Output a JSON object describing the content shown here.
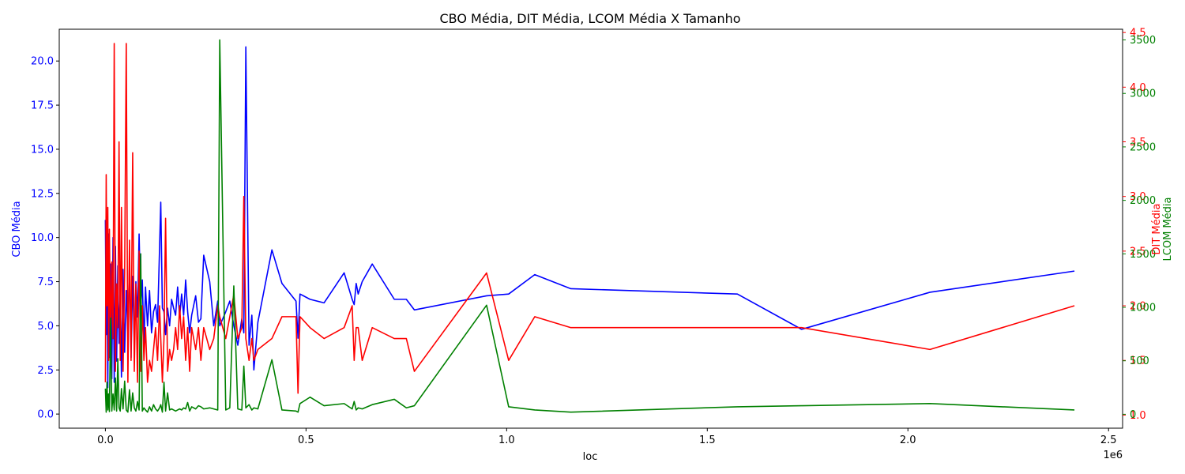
{
  "chart_data": {
    "type": "line",
    "title": "CBO Média, DIT Média, LCOM Média X Tamanho",
    "xlabel": "loc",
    "x_offset_label": "1e6",
    "x_ticks": [
      0,
      500000,
      1000000,
      1500000,
      2000000,
      2500000
    ],
    "x_tick_labels": [
      "0.0",
      "0.5",
      "1.0",
      "1.5",
      "2.0",
      "2.5"
    ],
    "xlim": [
      -115000,
      2535000
    ],
    "grid": false,
    "axes": [
      {
        "side": "left",
        "label": "CBO Média",
        "color": "#0000ff",
        "ylim": [
          -0.8,
          21.8
        ],
        "ticks": [
          0,
          2.5,
          5,
          7.5,
          10,
          12.5,
          15,
          17.5,
          20
        ],
        "tick_labels": [
          "0.0",
          "2.5",
          "5.0",
          "7.5",
          "10.0",
          "12.5",
          "15.0",
          "17.5",
          "20.0"
        ]
      },
      {
        "side": "right",
        "label": "DIT Média",
        "color": "#ff0000",
        "ylim": [
          0.88,
          4.53
        ],
        "ticks": [
          1.0,
          1.5,
          2.0,
          2.5,
          3.0,
          3.5,
          4.0,
          4.5
        ],
        "tick_labels": [
          "1.0",
          "1.5",
          "2.0",
          "2.5",
          "3.0",
          "3.5",
          "4.0",
          "4.5"
        ]
      },
      {
        "side": "right",
        "label": "LCOM Média",
        "color": "#008000",
        "ylim": [
          -130,
          3600
        ],
        "ticks": [
          0,
          500,
          1000,
          1500,
          2000,
          2500,
          3000,
          3500
        ],
        "tick_labels": [
          "0",
          "500",
          "1000",
          "1500",
          "2000",
          "2500",
          "3000",
          "3500"
        ]
      }
    ],
    "series": [
      {
        "name": "CBO Média",
        "axis": 0,
        "color": "#0000ff",
        "x": [
          0,
          2000,
          4000,
          6000,
          8000,
          10000,
          13000,
          16000,
          19000,
          22000,
          25000,
          28000,
          31000,
          34000,
          37000,
          40000,
          44000,
          48000,
          52000,
          56000,
          60000,
          64000,
          68000,
          72000,
          76000,
          80000,
          84000,
          88000,
          92000,
          96000,
          100000,
          105000,
          110000,
          115000,
          120000,
          125000,
          130000,
          135000,
          138000,
          142000,
          146000,
          150000,
          155000,
          160000,
          165000,
          170000,
          175000,
          180000,
          185000,
          190000,
          195000,
          200000,
          205000,
          210000,
          215000,
          225000,
          232000,
          238000,
          245000,
          260000,
          270000,
          280000,
          285000,
          300000,
          310000,
          320000,
          330000,
          340000,
          345000,
          350000,
          358000,
          365000,
          370000,
          380000,
          415000,
          440000,
          475000,
          480000,
          485000,
          510000,
          545000,
          595000,
          615000,
          620000,
          625000,
          630000,
          640000,
          665000,
          720000,
          750000,
          770000,
          950000,
          1005000,
          1070000,
          1160000,
          1575000,
          1735000,
          2055000,
          2415000
        ],
        "y": [
          11.0,
          4.5,
          9.0,
          1.5,
          10.2,
          3.2,
          8.5,
          2.0,
          10.0,
          1.8,
          9.5,
          3.0,
          8.4,
          4.0,
          7.2,
          2.1,
          8.2,
          3.5,
          7.0,
          4.6,
          8.5,
          3.2,
          7.8,
          4.0,
          7.5,
          5.5,
          10.2,
          6.0,
          7.6,
          3.9,
          7.2,
          5.0,
          7.0,
          4.6,
          5.8,
          6.2,
          5.2,
          9.4,
          12.0,
          6.0,
          5.8,
          4.5,
          6.0,
          5.0,
          6.5,
          6.0,
          5.6,
          7.2,
          5.5,
          6.8,
          5.6,
          7.6,
          5.8,
          4.6,
          5.6,
          6.7,
          5.2,
          5.4,
          9.0,
          7.5,
          5.0,
          6.4,
          5.0,
          5.8,
          6.4,
          5.0,
          3.9,
          5.4,
          4.6,
          20.8,
          3.9,
          5.6,
          2.5,
          5.2,
          9.3,
          7.4,
          6.4,
          4.3,
          6.8,
          6.5,
          6.3,
          8.0,
          6.5,
          6.2,
          7.4,
          6.8,
          7.5,
          8.5,
          6.5,
          6.5,
          5.9,
          6.7,
          6.8,
          7.9,
          7.1,
          6.8,
          4.8,
          6.9,
          8.1
        ]
      },
      {
        "name": "DIT Média",
        "axis": 1,
        "color": "#ff0000",
        "x": [
          0,
          2000,
          4000,
          6000,
          8000,
          10000,
          13000,
          16000,
          19000,
          22000,
          25000,
          28000,
          31000,
          34000,
          37000,
          40000,
          44000,
          48000,
          52000,
          56000,
          60000,
          64000,
          68000,
          72000,
          76000,
          80000,
          84000,
          88000,
          92000,
          96000,
          100000,
          105000,
          110000,
          115000,
          120000,
          125000,
          130000,
          135000,
          138000,
          142000,
          146000,
          150000,
          155000,
          160000,
          165000,
          170000,
          175000,
          180000,
          185000,
          190000,
          195000,
          200000,
          205000,
          210000,
          215000,
          225000,
          232000,
          238000,
          245000,
          260000,
          270000,
          280000,
          285000,
          300000,
          310000,
          320000,
          330000,
          340000,
          345000,
          350000,
          358000,
          365000,
          370000,
          380000,
          415000,
          440000,
          475000,
          480000,
          485000,
          510000,
          545000,
          595000,
          615000,
          620000,
          625000,
          630000,
          640000,
          665000,
          720000,
          750000,
          770000,
          950000,
          1005000,
          1070000,
          1160000,
          1575000,
          1735000,
          2055000,
          2415000
        ],
        "y": [
          1.3,
          3.2,
          2.0,
          2.9,
          1.5,
          2.7,
          1.6,
          2.4,
          1.7,
          4.4,
          1.4,
          2.2,
          1.8,
          3.5,
          1.5,
          2.9,
          1.4,
          2.3,
          4.4,
          1.3,
          2.6,
          1.5,
          3.4,
          1.4,
          2.2,
          1.3,
          2.5,
          1.4,
          2.0,
          1.5,
          1.8,
          1.3,
          1.5,
          1.4,
          1.6,
          1.8,
          1.5,
          2.0,
          1.7,
          1.3,
          1.7,
          2.8,
          1.4,
          1.6,
          1.5,
          1.6,
          1.8,
          1.6,
          2.0,
          1.7,
          1.9,
          1.5,
          1.8,
          1.4,
          1.8,
          1.6,
          1.8,
          1.5,
          1.8,
          1.6,
          1.7,
          2.0,
          1.9,
          1.7,
          1.9,
          2.1,
          1.7,
          1.8,
          3.0,
          1.7,
          1.5,
          1.7,
          1.5,
          1.6,
          1.7,
          1.9,
          1.9,
          1.2,
          1.9,
          1.8,
          1.7,
          1.8,
          2.0,
          1.5,
          1.8,
          1.8,
          1.5,
          1.8,
          1.7,
          1.7,
          1.4,
          2.3,
          1.5,
          1.9,
          1.8,
          1.8,
          1.8,
          1.6,
          2.0
        ]
      },
      {
        "name": "LCOM Média",
        "axis": 2,
        "color": "#008000",
        "x": [
          0,
          2000,
          4000,
          6000,
          8000,
          10000,
          13000,
          16000,
          19000,
          22000,
          25000,
          28000,
          31000,
          34000,
          37000,
          40000,
          44000,
          48000,
          52000,
          56000,
          60000,
          64000,
          68000,
          72000,
          76000,
          80000,
          84000,
          88000,
          92000,
          96000,
          100000,
          105000,
          110000,
          115000,
          120000,
          125000,
          130000,
          135000,
          138000,
          142000,
          146000,
          150000,
          155000,
          160000,
          165000,
          170000,
          175000,
          180000,
          185000,
          190000,
          195000,
          200000,
          205000,
          210000,
          215000,
          225000,
          232000,
          238000,
          245000,
          260000,
          270000,
          280000,
          285000,
          300000,
          310000,
          320000,
          330000,
          340000,
          345000,
          350000,
          358000,
          365000,
          370000,
          380000,
          415000,
          440000,
          475000,
          480000,
          485000,
          510000,
          545000,
          595000,
          615000,
          620000,
          625000,
          630000,
          640000,
          665000,
          720000,
          750000,
          770000,
          950000,
          1005000,
          1070000,
          1160000,
          1575000,
          1735000,
          2055000,
          2415000
        ],
        "y": [
          240,
          20,
          300,
          40,
          190,
          25,
          900,
          30,
          190,
          40,
          340,
          30,
          520,
          60,
          30,
          240,
          50,
          310,
          40,
          20,
          230,
          30,
          200,
          60,
          30,
          120,
          40,
          1500,
          30,
          60,
          40,
          20,
          70,
          30,
          90,
          50,
          30,
          60,
          90,
          20,
          300,
          30,
          200,
          40,
          50,
          40,
          30,
          40,
          50,
          40,
          60,
          50,
          110,
          30,
          70,
          50,
          80,
          70,
          50,
          60,
          50,
          40,
          3500,
          40,
          60,
          1200,
          50,
          40,
          450,
          60,
          90,
          40,
          60,
          50,
          510,
          40,
          30,
          20,
          100,
          160,
          80,
          100,
          50,
          120,
          40,
          60,
          50,
          90,
          140,
          60,
          80,
          1020,
          70,
          40,
          20,
          70,
          80,
          100,
          40
        ]
      }
    ]
  }
}
